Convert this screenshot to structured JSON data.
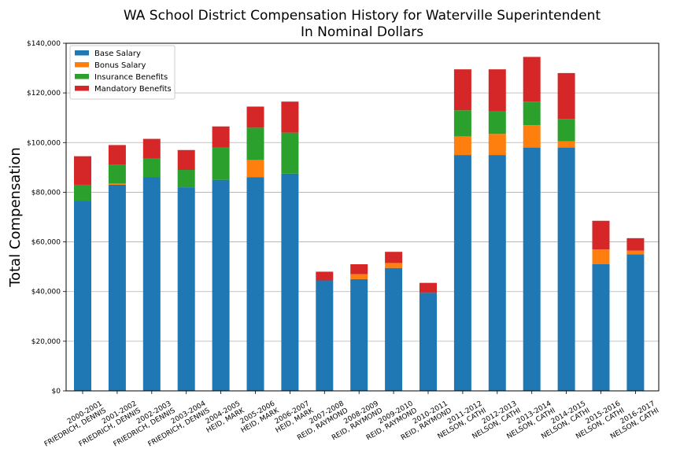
{
  "chart_data": {
    "type": "bar",
    "stacked": true,
    "title": "WA School District Compensation History for Waterville Superintendent",
    "subtitle": "In Nominal Dollars",
    "ylabel": "Total Compensation",
    "xlabel": "",
    "ylim": [
      0,
      140000
    ],
    "yticks": [
      0,
      20000,
      40000,
      60000,
      80000,
      100000,
      120000,
      140000
    ],
    "ytick_labels": [
      "$0",
      "$20,000",
      "$40,000",
      "$60,000",
      "$80,000",
      "$100,000",
      "$120,000",
      "$140,000"
    ],
    "grid": "horizontal",
    "legend_position": "top-left",
    "categories": [
      [
        "2000-2001",
        "FRIEDRICH, DENNIS"
      ],
      [
        "2001-2002",
        "FRIEDRICH, DENNIS"
      ],
      [
        "2002-2003",
        "FRIEDRICH, DENNIS"
      ],
      [
        "2003-2004",
        "FRIEDRICH, DENNIS"
      ],
      [
        "2004-2005",
        "HEID, MARK"
      ],
      [
        "2005-2006",
        "HEID, MARK"
      ],
      [
        "2006-2007",
        "HEID, MARK"
      ],
      [
        "2007-2008",
        "REID, RAYMOND"
      ],
      [
        "2008-2009",
        "REID, RAYMOND"
      ],
      [
        "2009-2010",
        "REID, RAYMOND"
      ],
      [
        "2010-2011",
        "REID, RAYMOND"
      ],
      [
        "2011-2012",
        "NELSON, CATHI"
      ],
      [
        "2012-2013",
        "NELSON, CATHI"
      ],
      [
        "2013-2014",
        "NELSON, CATHI"
      ],
      [
        "2014-2015",
        "NELSON, CATHI"
      ],
      [
        "2015-2016",
        "NELSON, CATHI"
      ],
      [
        "2016-2017",
        "NELSON, CATHI"
      ]
    ],
    "series": [
      {
        "name": "Base Salary",
        "color": "#1f77b4",
        "values": [
          76500,
          83000,
          86000,
          82000,
          85000,
          86000,
          87500,
          44500,
          45000,
          49500,
          39500,
          95000,
          95000,
          98000,
          98000,
          51000,
          55000
        ]
      },
      {
        "name": "Bonus Salary",
        "color": "#ff7f0e",
        "values": [
          0,
          500,
          0,
          0,
          0,
          7000,
          0,
          0,
          2000,
          2000,
          0,
          7500,
          8500,
          9000,
          2500,
          6000,
          1500
        ]
      },
      {
        "name": "Insurance Benefits",
        "color": "#2ca02c",
        "values": [
          6500,
          7500,
          7500,
          7000,
          13000,
          13000,
          16500,
          0,
          0,
          0,
          0,
          10500,
          9000,
          9500,
          9000,
          0,
          0
        ]
      },
      {
        "name": "Mandatory Benefits",
        "color": "#d62728",
        "values": [
          11500,
          8000,
          8000,
          8000,
          8500,
          8500,
          12500,
          3500,
          4000,
          4500,
          4000,
          16500,
          17000,
          18000,
          18500,
          11500,
          5000
        ]
      }
    ]
  }
}
